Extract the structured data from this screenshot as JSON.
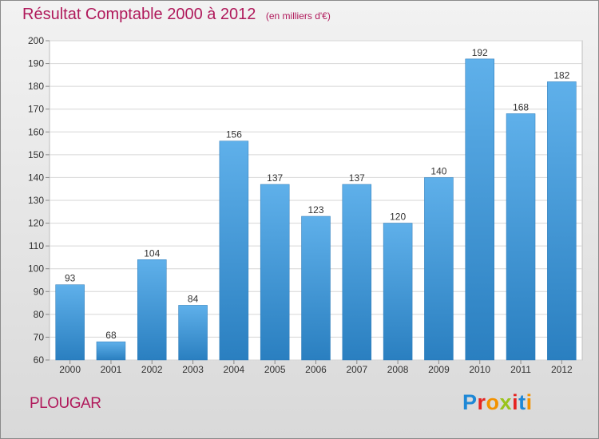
{
  "header": {
    "title": "Résultat Comptable 2000 à 2012",
    "unit": "(en milliers d'€)"
  },
  "footer": {
    "commune": "PLOUGAR",
    "brand": "Proxiti",
    "brand_colors": [
      "#1e88d6",
      "#e52421",
      "#f39200",
      "#9ac31c",
      "#e52421",
      "#1e88d6",
      "#f39200"
    ]
  },
  "colors": {
    "title": "#b0195b",
    "bar_top": "#5fb0ea",
    "bar_bottom": "#2a7fc0"
  },
  "chart_data": {
    "type": "bar",
    "title": "Résultat Comptable 2000 à 2012",
    "xlabel": "",
    "ylabel": "",
    "ylim": [
      60,
      200
    ],
    "yticks": [
      60,
      70,
      80,
      90,
      100,
      110,
      120,
      130,
      140,
      150,
      160,
      170,
      180,
      190,
      200
    ],
    "grid": true,
    "categories": [
      "2000",
      "2001",
      "2002",
      "2003",
      "2004",
      "2005",
      "2006",
      "2007",
      "2008",
      "2009",
      "2010",
      "2011",
      "2012"
    ],
    "values": [
      93,
      68,
      104,
      84,
      156,
      137,
      123,
      137,
      120,
      140,
      192,
      168,
      182
    ]
  }
}
